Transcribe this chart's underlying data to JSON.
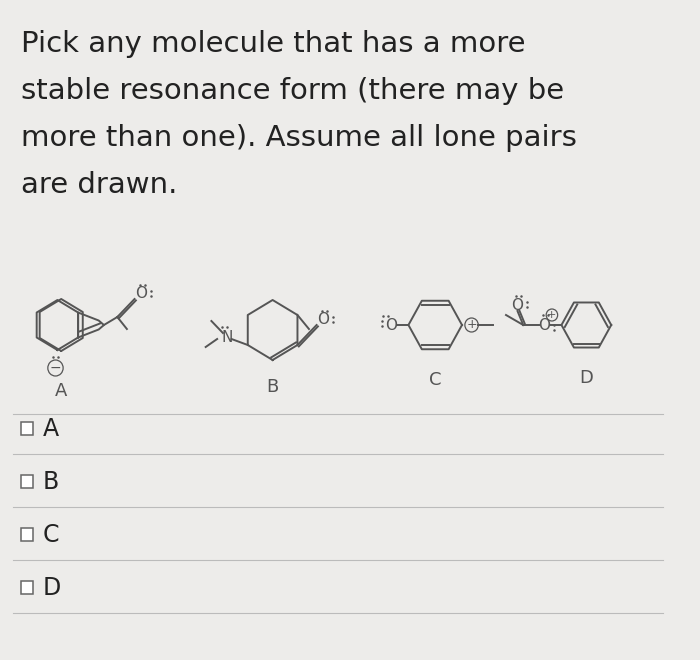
{
  "title_lines": [
    "Pick any molecule that has a more",
    "stable resonance form (there may be",
    "more than one). Assume all lone pairs",
    "are drawn."
  ],
  "options": [
    "A",
    "B",
    "C",
    "D"
  ],
  "background_color": "#edecea",
  "text_color": "#222222",
  "title_fontsize": 21,
  "option_fontsize": 17,
  "mol_label_fontsize": 13,
  "mol_line_color": "#555555",
  "mol_lw": 1.4
}
